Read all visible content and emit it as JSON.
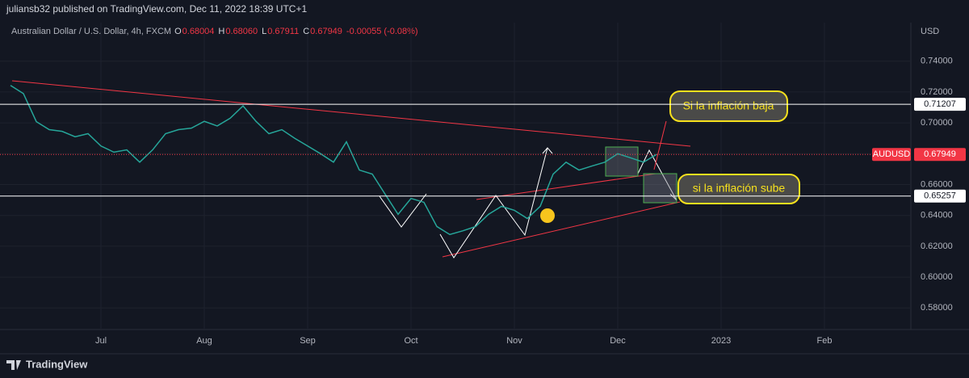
{
  "header": {
    "publisher": "juliansb32 published on TradingView.com, Dec 11, 2022 18:39 UTC+1",
    "symbol": "Australian Dollar / U.S. Dollar, 4h, FXCM",
    "ohlc": [
      {
        "label": "O",
        "value": "0.68004"
      },
      {
        "label": "H",
        "value": "0.68060"
      },
      {
        "label": "L",
        "value": "0.67911"
      },
      {
        "label": "C",
        "value": "0.67949"
      }
    ],
    "change": "-0.00055 (-0.08%)"
  },
  "chart_data": {
    "type": "line",
    "currency": "USD",
    "categories": [
      null,
      null,
      null,
      null,
      null,
      null,
      null,
      "Jul",
      null,
      null,
      null,
      null,
      null,
      null,
      null,
      "Aug",
      null,
      null,
      null,
      null,
      null,
      null,
      null,
      "Sep",
      null,
      null,
      null,
      null,
      null,
      null,
      null,
      "Oct",
      null,
      null,
      null,
      null,
      null,
      null,
      null,
      "Nov",
      null,
      null,
      null,
      null,
      null,
      null,
      null,
      "Dec",
      null,
      null,
      null,
      null,
      null,
      null,
      null,
      "2023",
      null,
      null,
      null,
      null,
      null,
      null,
      null,
      "Feb",
      null,
      null,
      null,
      null,
      null,
      null
    ],
    "series": [
      {
        "name": "AUDUSD",
        "color": "#26a69a",
        "values": [
          0.7243,
          0.719,
          0.7008,
          0.6956,
          0.6945,
          0.691,
          0.693,
          0.685,
          0.681,
          0.6825,
          0.6745,
          0.6825,
          0.693,
          0.6956,
          0.6966,
          0.701,
          0.698,
          0.703,
          0.711,
          0.701,
          0.693,
          0.6956,
          0.69,
          0.685,
          0.68,
          0.6745,
          0.6877,
          0.6694,
          0.6668,
          0.6537,
          0.6407,
          0.651,
          0.6485,
          0.6328,
          0.6276,
          0.63,
          0.6328,
          0.6407,
          0.6459,
          0.6433,
          0.638,
          0.6459,
          0.6668,
          0.6745,
          0.6694,
          0.672,
          0.6745,
          0.68,
          0.6773,
          0.6745,
          0.67949,
          null,
          null,
          null,
          null,
          null,
          null,
          null,
          null,
          null,
          null,
          null,
          null,
          null,
          null,
          null,
          null,
          null,
          null,
          null
        ]
      }
    ],
    "last_price": 0.67949,
    "levels": [
      0.71207,
      0.65257
    ],
    "ylim": [
      0.566,
      0.765
    ],
    "yticks": [
      {
        "value": 0.58,
        "label": "0.58000"
      },
      {
        "value": 0.6,
        "label": "0.60000"
      },
      {
        "value": 0.62,
        "label": "0.62000"
      },
      {
        "value": 0.64,
        "label": "0.64000"
      },
      {
        "value": 0.66,
        "label": "0.66000"
      },
      {
        "value": 0.68,
        "label": "0.68000"
      },
      {
        "value": 0.7,
        "label": "0.70000"
      },
      {
        "value": 0.72,
        "label": "0.72000"
      },
      {
        "value": 0.74,
        "label": "0.74000"
      }
    ],
    "grid": true,
    "annotations": [
      "Si la inflación baja",
      "si la inflación sube"
    ]
  },
  "footer": {
    "brand": "TradingView"
  }
}
